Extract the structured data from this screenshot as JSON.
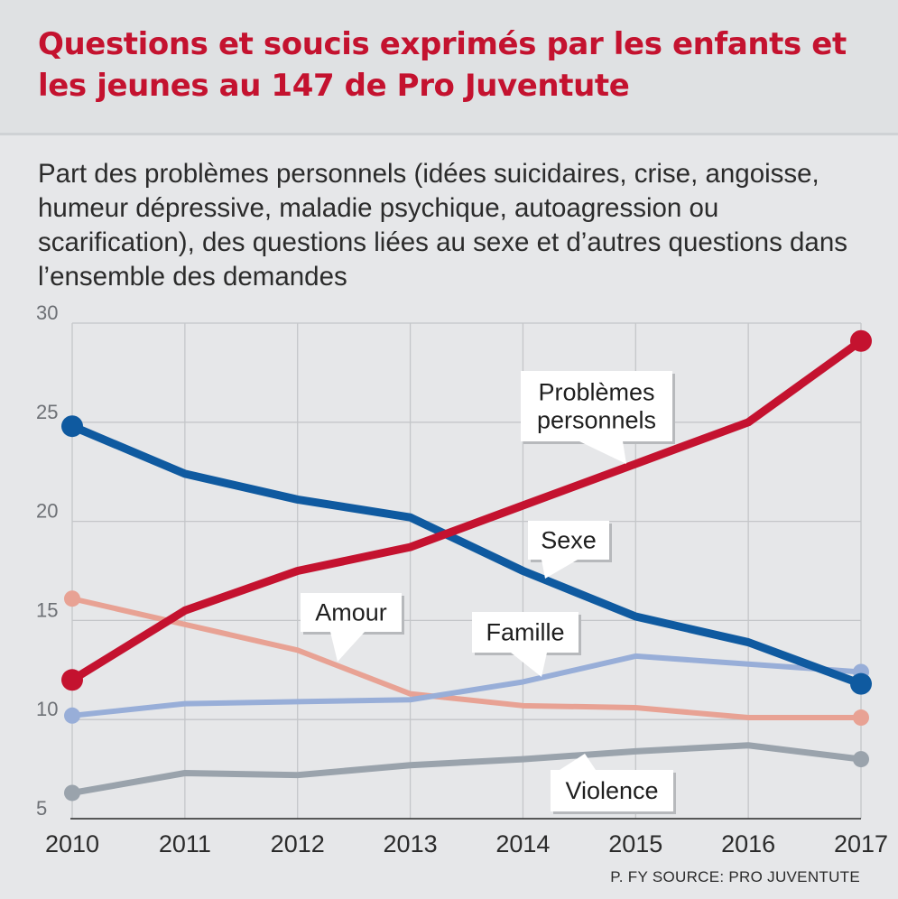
{
  "header": {
    "title": "Questions et soucis exprimés par les enfants et les jeunes au 147 de Pro Juventute"
  },
  "subtitle": "Part des problèmes personnels (idées suicidaires, crise, angoisse, humeur dépressive, maladie psychique, autoagression ou scarification), des questions liées au sexe et d’autres questions dans l’ensemble des demandes",
  "source": "P. FY SOURCE: PRO JUVENTUTE",
  "chart_data": {
    "type": "line",
    "x": [
      2010,
      2011,
      2012,
      2013,
      2014,
      2015,
      2016,
      2017
    ],
    "ylim": [
      5,
      30
    ],
    "yticks": [
      5,
      10,
      15,
      20,
      25,
      30
    ],
    "grid": true,
    "series": [
      {
        "name": "Violence",
        "color": "#9aa3ac",
        "values": [
          6.3,
          7.3,
          7.2,
          7.7,
          8.0,
          8.4,
          8.7,
          8.0
        ],
        "end_marker": true,
        "start_marker": true
      },
      {
        "name": "Amour",
        "color": "#e8a294",
        "values": [
          16.1,
          14.8,
          13.5,
          11.3,
          10.7,
          10.6,
          10.1,
          10.1
        ],
        "end_marker": true,
        "start_marker": true
      },
      {
        "name": "Famille",
        "color": "#98aed8",
        "values": [
          10.2,
          10.8,
          10.9,
          11.0,
          11.9,
          13.2,
          12.8,
          12.4
        ],
        "end_marker": true,
        "start_marker": true
      },
      {
        "name": "Sexe",
        "color": "#0f5aa0",
        "values": [
          24.8,
          22.4,
          21.1,
          20.2,
          17.5,
          15.2,
          13.9,
          11.8
        ],
        "end_marker": true,
        "start_marker": true
      },
      {
        "name": "Problèmes personnels",
        "color": "#c4122f",
        "values": [
          12.0,
          15.5,
          17.5,
          18.7,
          20.8,
          22.9,
          25.0,
          29.1
        ],
        "end_marker": true,
        "start_marker": true
      }
    ],
    "annotations": [
      {
        "label": [
          "Problèmes",
          "personnels"
        ],
        "series": "Problèmes personnels"
      },
      {
        "label": [
          "Sexe"
        ],
        "series": "Sexe"
      },
      {
        "label": [
          "Amour"
        ],
        "series": "Amour"
      },
      {
        "label": [
          "Famille"
        ],
        "series": "Famille"
      },
      {
        "label": [
          "Violence"
        ],
        "series": "Violence"
      }
    ]
  }
}
